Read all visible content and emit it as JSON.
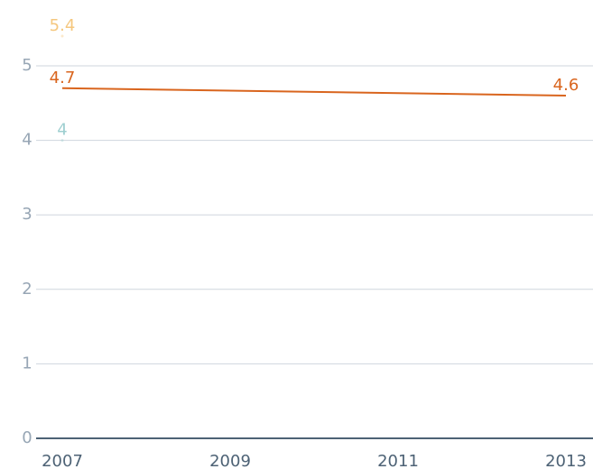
{
  "chart_data": {
    "type": "line",
    "x": [
      2007,
      2013
    ],
    "series": [
      {
        "color": "#f5c77e",
        "values": [
          5.4,
          null
        ]
      },
      {
        "color": "#9ecfd0",
        "values": [
          4,
          null
        ]
      },
      {
        "color": "#d9651e",
        "values": [
          4.7,
          4.6
        ]
      }
    ],
    "xlim": [
      2007,
      2013
    ],
    "xticks": [
      2007,
      2009,
      2011,
      2013
    ],
    "ylim": [
      0,
      5
    ],
    "yticks": [
      0,
      1,
      2,
      3,
      4,
      5
    ],
    "grid": true
  }
}
